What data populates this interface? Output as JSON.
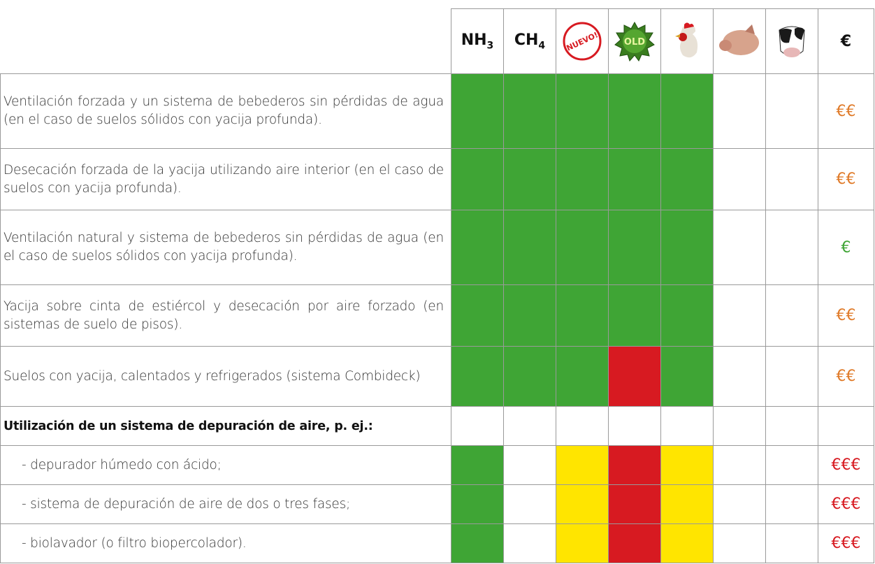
{
  "header": {
    "nh3": {
      "text": "NH",
      "subscript": "3"
    },
    "ch4": {
      "text": "CH",
      "subscript": "4"
    },
    "new_badge": "NUEVO!",
    "old_badge": "OLD",
    "cost": "€"
  },
  "rows": [
    {
      "text": "Ventilación forzada y un sistema de bebederos sin pérdidas de agua (en el caso de suelos sólidos con yacija profunda).",
      "cells": [
        "#3fa535",
        "#3fa535",
        "#3fa535",
        "#3fa535",
        "#3fa535",
        null,
        null
      ],
      "cost": "€€",
      "cost_color": "#e07b2a"
    },
    {
      "text": "Desecación forzada de la yacija utilizando aire interior (en el caso de suelos con yacija profunda).",
      "cells": [
        "#3fa535",
        "#3fa535",
        "#3fa535",
        "#3fa535",
        "#3fa535",
        null,
        null
      ],
      "cost": "€€",
      "cost_color": "#e07b2a"
    },
    {
      "text": "Ventilación natural y sistema de bebederos sin pérdidas de agua (en el caso de suelos sólidos con yacija profunda).",
      "cells": [
        "#3fa535",
        "#3fa535",
        "#3fa535",
        "#3fa535",
        "#3fa535",
        null,
        null
      ],
      "cost": "€",
      "cost_color": "#3fa535"
    },
    {
      "text": "Yacija sobre cinta de estiércol y desecación por aire forzado (en sistemas de suelo de pisos).",
      "cells": [
        "#3fa535",
        "#3fa535",
        "#3fa535",
        "#3fa535",
        "#3fa535",
        null,
        null
      ],
      "cost": "€€",
      "cost_color": "#e07b2a"
    },
    {
      "text": "Suelos con yacija, calentados y refrigerados (sistema Combideck)",
      "cells": [
        "#3fa535",
        "#3fa535",
        "#3fa535",
        "#d71a21",
        "#3fa535",
        null,
        null
      ],
      "cost": "€€",
      "cost_color": "#e07b2a"
    },
    {
      "text": "Utilización de un sistema de depuración de aire, p. ej.:",
      "style": "heading",
      "cells": [
        null,
        null,
        null,
        null,
        null,
        null,
        null
      ]
    },
    {
      "text": "- depurador húmedo con ácido;",
      "style": "indent",
      "cells": [
        "#3fa535",
        null,
        "#ffe500",
        "#d71a21",
        "#ffe500",
        null,
        null
      ],
      "cost": "€€€",
      "cost_color": "#d71a21"
    },
    {
      "text": "- sistema de depuración de aire de dos o tres fases;",
      "style": "indent",
      "cells": [
        "#3fa535",
        null,
        "#ffe500",
        "#d71a21",
        "#ffe500",
        null,
        null
      ],
      "cost": "€€€",
      "cost_color": "#d71a21"
    },
    {
      "text": "- biolavador (o filtro biopercolador).",
      "style": "indent",
      "cells": [
        "#3fa535",
        null,
        "#ffe500",
        "#d71a21",
        "#ffe500",
        null,
        null
      ],
      "cost": "€€€",
      "cost_color": "#d71a21"
    }
  ]
}
